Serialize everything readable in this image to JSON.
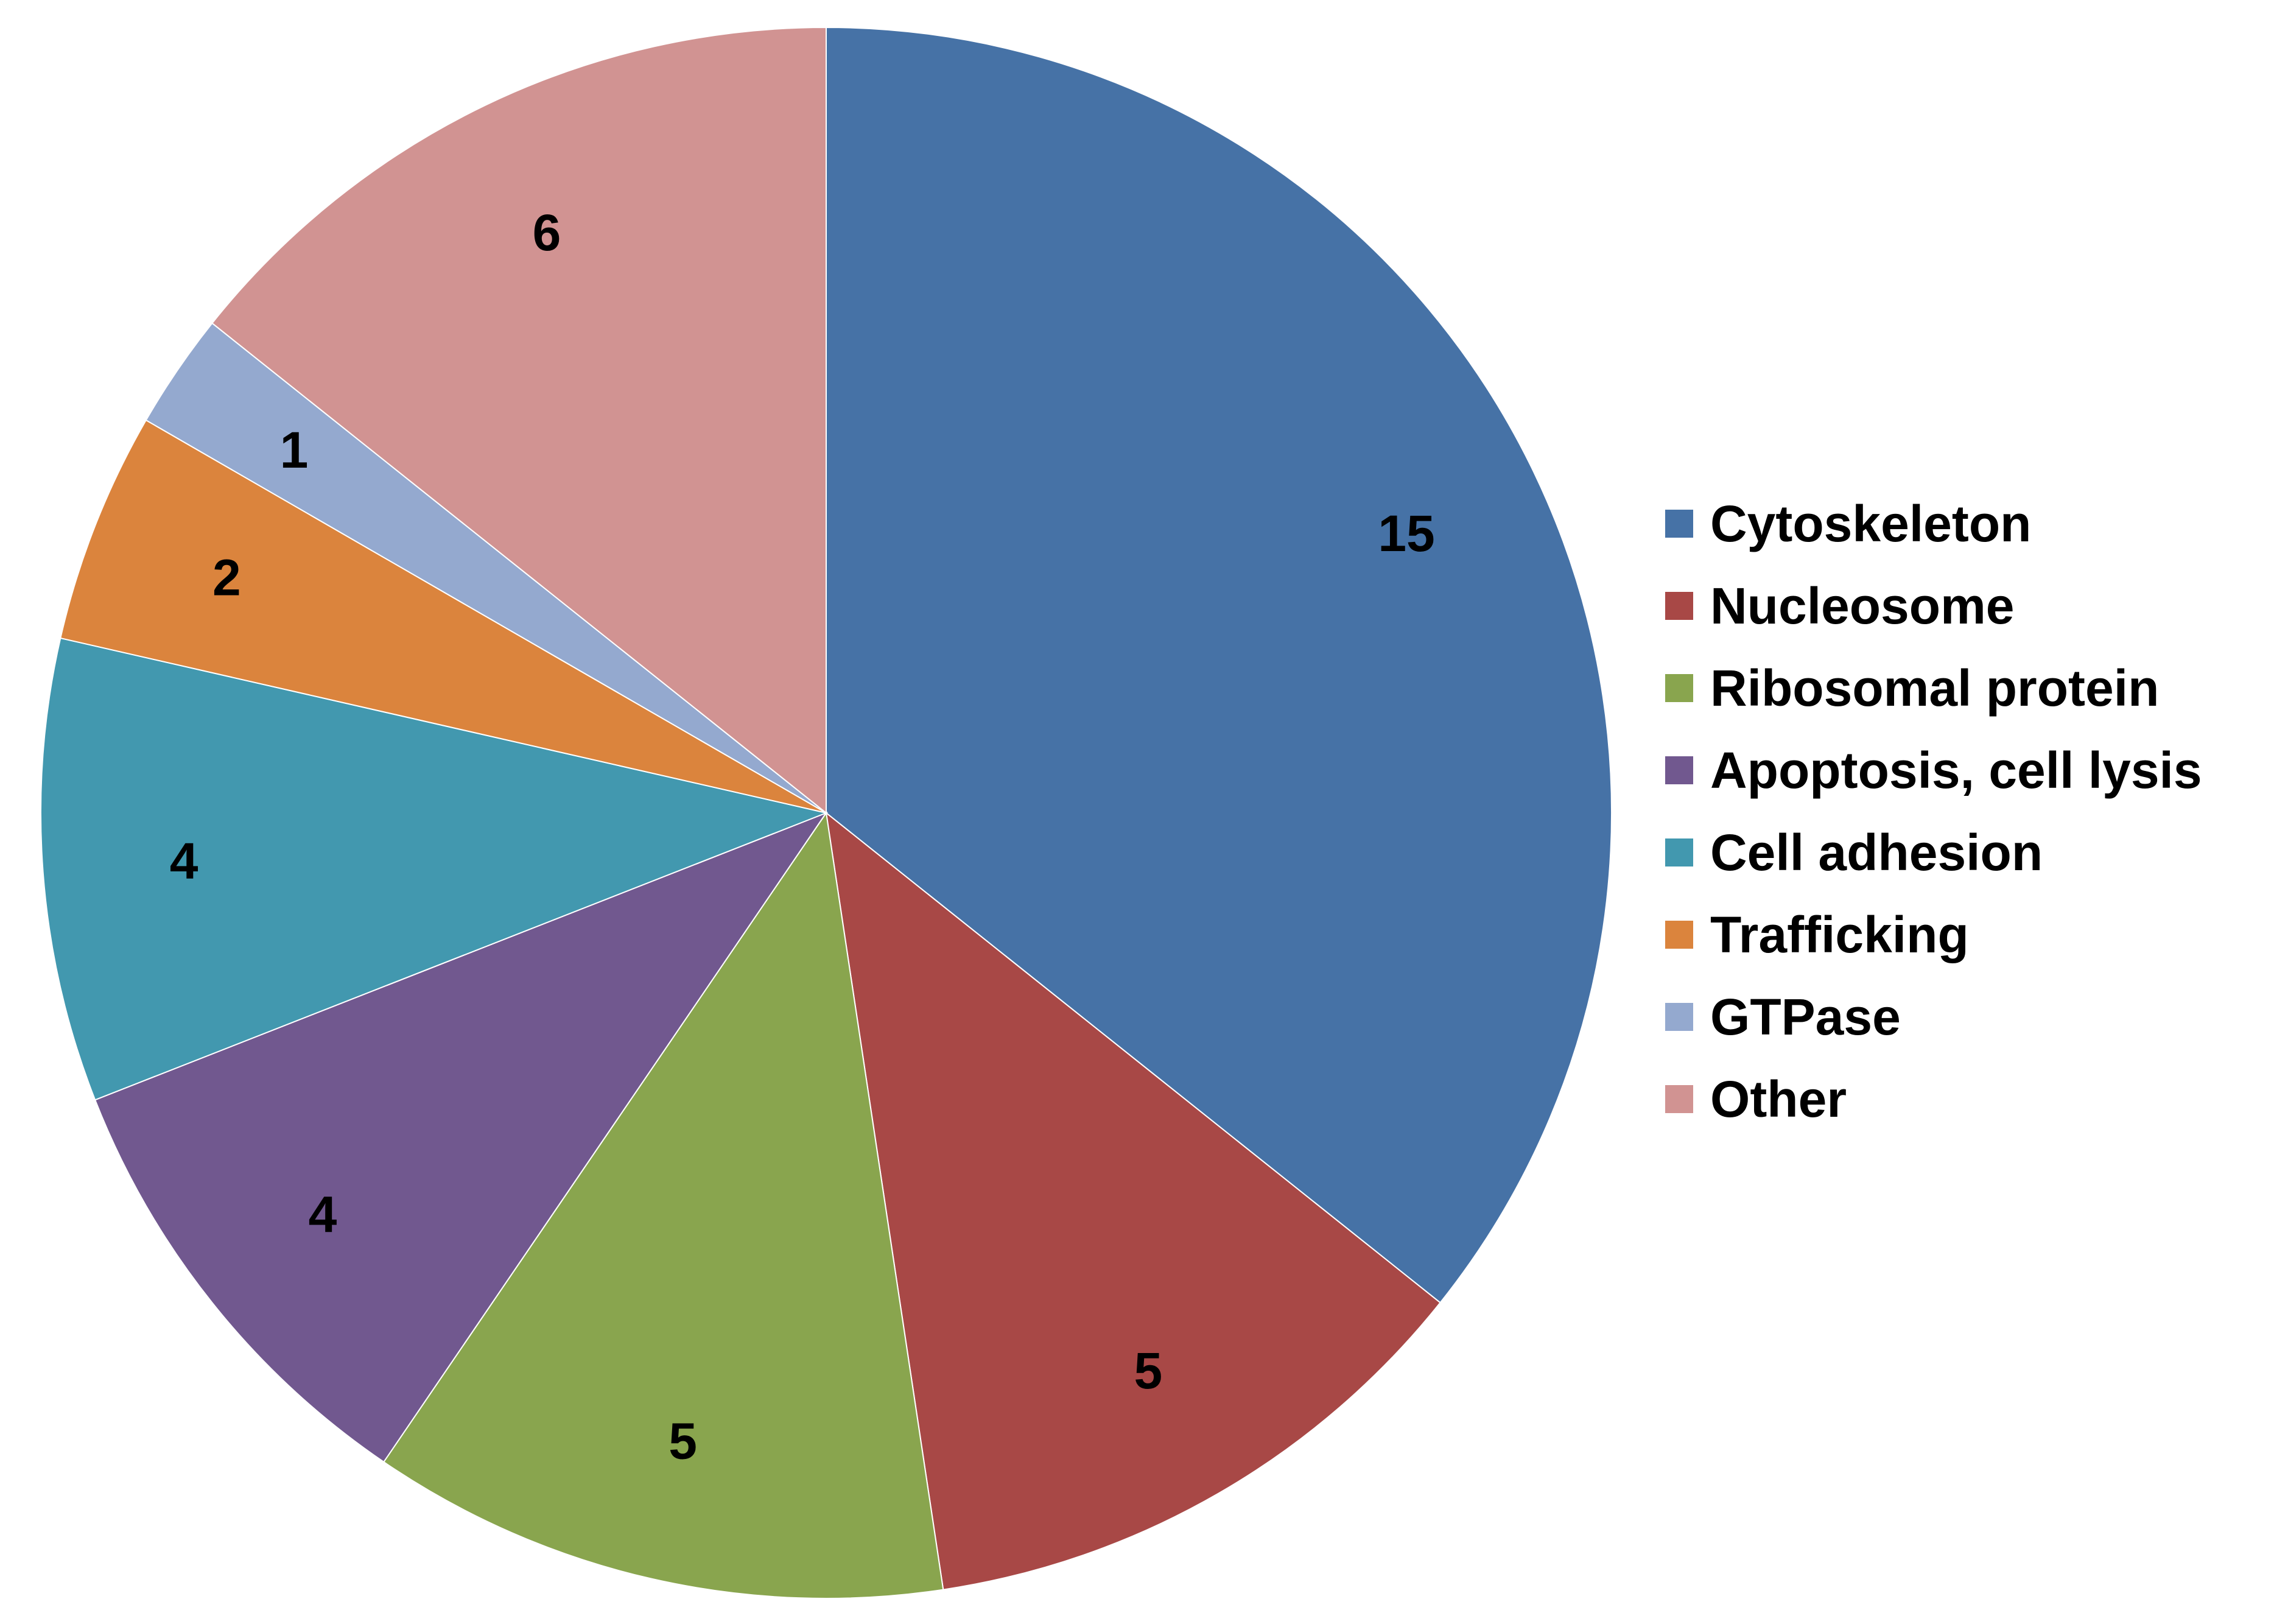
{
  "chart_data": {
    "type": "pie",
    "start_angle": "12 o'clock",
    "direction": "clockwise",
    "legend_position": "right",
    "slices": [
      {
        "label": "Cytoskeleton",
        "value": 15,
        "color": "#4672A6",
        "value_label": "15"
      },
      {
        "label": "Nucleosome",
        "value": 5,
        "color": "#A84846",
        "value_label": "5"
      },
      {
        "label": "Ribosomal protein",
        "value": 5,
        "color": "#89A54E",
        "value_label": "5"
      },
      {
        "label": "Apoptosis, cell lysis",
        "value": 4,
        "color": "#71588F",
        "value_label": "4"
      },
      {
        "label": "Cell adhesion",
        "value": 4,
        "color": "#4298AF",
        "value_label": "4"
      },
      {
        "label": "Trafficking",
        "value": 2,
        "color": "#DB843D",
        "value_label": "2"
      },
      {
        "label": "GTPase",
        "value": 1,
        "color": "#94A9CF",
        "value_label": "1"
      },
      {
        "label": "Other",
        "value": 6,
        "color": "#D19392",
        "value_label": "6"
      }
    ]
  }
}
